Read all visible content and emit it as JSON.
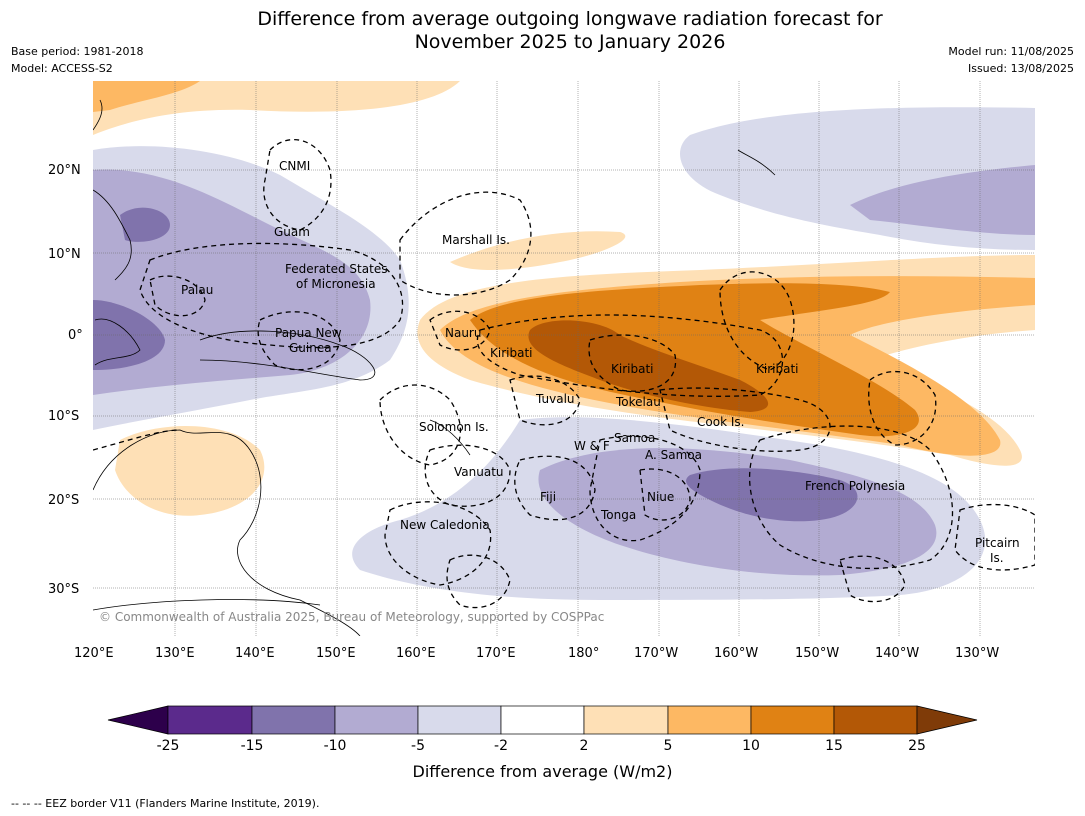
{
  "title_line1": "Difference from average outgoing longwave radiation forecast for",
  "title_line2": "November 2025 to January 2026",
  "base_period": "Base period: 1981-2018",
  "model": "Model: ACCESS-S2",
  "model_run": "Model run: 11/08/2025",
  "issued": "Issued: 13/08/2025",
  "copyright": "© Commonwealth of Australia 2025, Bureau of Meteorology, supported by COSPPac",
  "colorbar": {
    "title": "Difference from average (W/m2)",
    "ticks": [
      "-25",
      "-15",
      "-10",
      "-5",
      "-2",
      "2",
      "5",
      "10",
      "15",
      "25"
    ],
    "colors": [
      "#2d004b",
      "#5b2a8c",
      "#8073ac",
      "#b2abd2",
      "#d8daeb",
      "#ffffff",
      "#fee0b6",
      "#fdb863",
      "#e08214",
      "#b35806",
      "#7f3b08"
    ]
  },
  "footnote": "--  --  -- EEZ border V11 (Flanders Marine Institute, 2019).",
  "lon_labels": [
    "120°E",
    "130°E",
    "140°E",
    "150°E",
    "160°E",
    "170°E",
    "180°",
    "170°W",
    "160°W",
    "150°W",
    "140°W",
    "130°W"
  ],
  "lat_labels": [
    "20°N",
    "10°N",
    "0°",
    "10°S",
    "20°S",
    "30°S"
  ],
  "places": {
    "cnmi": "CNMI",
    "guam": "Guam",
    "marshall": "Marshall Is.",
    "fsm1": "Federated States",
    "fsm2": "of Micronesia",
    "palau": "Palau",
    "png1": "Papua New",
    "png2": "Guinea",
    "nauru": "Nauru",
    "kiribati1": "Kiribati",
    "kiribati2": "Kiribati",
    "kiribati3": "Kiribati",
    "tuvalu": "Tuvalu",
    "tokelau": "Tokelau",
    "cook": "Cook Is.",
    "solomon": "Solomon Is.",
    "wf": "W & F",
    "samoa": "Samoa",
    "asamoa": "A. Samoa",
    "vanuatu": "Vanuatu",
    "fiji": "Fiji",
    "niue": "Niue",
    "tonga": "Tonga",
    "fpoly": "French Polynesia",
    "newcal": "New Caledonia",
    "pitcairn1": "Pitcairn",
    "pitcairn2": "Is."
  }
}
